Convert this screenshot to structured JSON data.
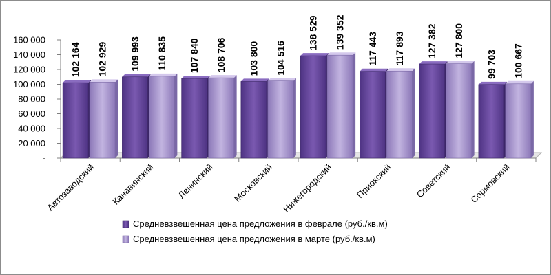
{
  "chart_data": {
    "type": "bar",
    "categories": [
      "Автозаводский",
      "Канавинский",
      "Ленинский",
      "Московский",
      "Нижегородский",
      "Приокский",
      "Советский",
      "Сормовский"
    ],
    "series": [
      {
        "name": "Средневзвешенная цена предложения в феврале (руб./кв.м)",
        "values": [
          102164,
          109993,
          107840,
          103800,
          138529,
          117443,
          127382,
          99703
        ],
        "labels": [
          "102 164",
          "109 993",
          "107 840",
          "103 800",
          "138 529",
          "117 443",
          "127 382",
          "99 703"
        ],
        "color": "#6a4a9c"
      },
      {
        "name": "Средневзвешенная цена предложения в марте (руб./кв.м)",
        "values": [
          102929,
          110835,
          108706,
          104516,
          139352,
          117893,
          127800,
          100667
        ],
        "labels": [
          "102 929",
          "110 835",
          "108 706",
          "104 516",
          "139 352",
          "117 893",
          "127 800",
          "100 667"
        ],
        "color": "#a492c8"
      }
    ],
    "yticks": [
      0,
      20000,
      40000,
      60000,
      80000,
      100000,
      120000,
      140000,
      160000
    ],
    "ytick_labels": [
      "-",
      "20 000",
      "40 000",
      "60 000",
      "80 000",
      "100 000",
      "120 000",
      "140 000",
      "160 000"
    ],
    "ylim": [
      0,
      160000
    ],
    "grid": false,
    "legend_position": "bottom"
  }
}
